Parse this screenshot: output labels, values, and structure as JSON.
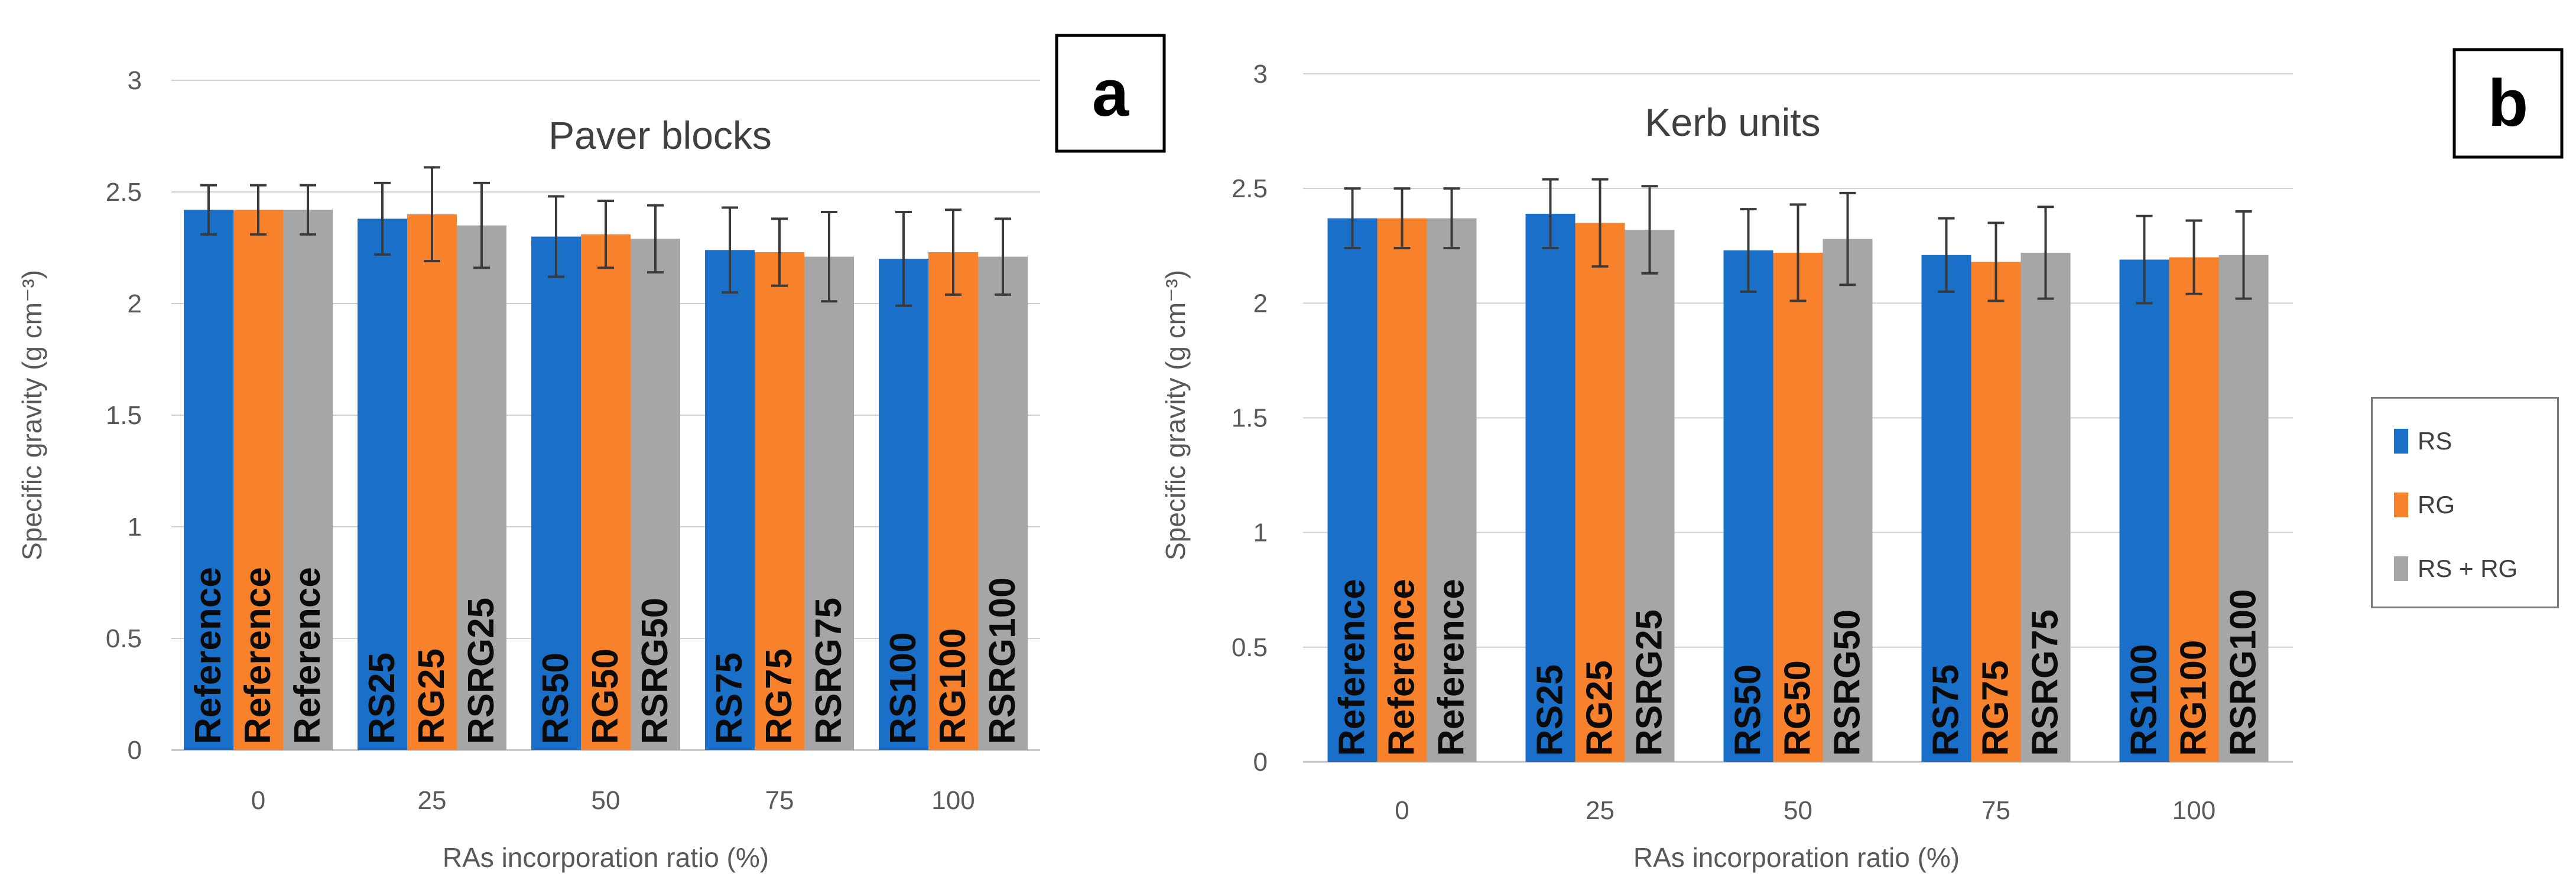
{
  "colors": {
    "series": [
      "#1a70c8",
      "#f7822b",
      "#a6a6a6"
    ],
    "grid": "#d0d0d0",
    "axis_text": "#595959",
    "bar_label": "#0b0b0b"
  },
  "legend": {
    "items": [
      "RS",
      "RG",
      "RS + RG"
    ]
  },
  "chart_data": [
    {
      "type": "bar",
      "title": "Paver blocks",
      "panel_label": "a",
      "xlabel": "RAs incorporation ratio (%)",
      "ylabel": "Specific gravity (g cm⁻³)",
      "categories": [
        "0",
        "25",
        "50",
        "75",
        "100"
      ],
      "ylim": [
        0,
        3
      ],
      "yticks": [
        "0",
        "0.5",
        "1",
        "1.5",
        "2",
        "2.5",
        "3"
      ],
      "grid": true,
      "legend_position": "right",
      "series": [
        {
          "name": "RS",
          "values": [
            2.42,
            2.38,
            2.3,
            2.24,
            2.2
          ],
          "errors": [
            0.11,
            0.16,
            0.18,
            0.19,
            0.21
          ],
          "bar_labels": [
            "Reference",
            "RS25",
            "RS50",
            "RS75",
            "RS100"
          ]
        },
        {
          "name": "RG",
          "values": [
            2.42,
            2.4,
            2.31,
            2.23,
            2.23
          ],
          "errors": [
            0.11,
            0.21,
            0.15,
            0.15,
            0.19
          ],
          "bar_labels": [
            "Reference",
            "RG25",
            "RG50",
            "RG75",
            "RG100"
          ]
        },
        {
          "name": "RS + RG",
          "values": [
            2.42,
            2.35,
            2.29,
            2.21,
            2.21
          ],
          "errors": [
            0.11,
            0.19,
            0.15,
            0.2,
            0.17
          ],
          "bar_labels": [
            "Reference",
            "RSRG25",
            "RSRG50",
            "RSRG75",
            "RSRG100"
          ]
        }
      ]
    },
    {
      "type": "bar",
      "title": "Kerb units",
      "panel_label": "b",
      "xlabel": "RAs incorporation ratio (%)",
      "ylabel": "Specific gravity (g cm⁻³)",
      "categories": [
        "0",
        "25",
        "50",
        "75",
        "100"
      ],
      "ylim": [
        0,
        3
      ],
      "yticks": [
        "0",
        "0.5",
        "1",
        "1.5",
        "2",
        "2.5",
        "3"
      ],
      "grid": true,
      "legend_position": "right",
      "series": [
        {
          "name": "RS",
          "values": [
            2.37,
            2.39,
            2.23,
            2.21,
            2.19
          ],
          "errors": [
            0.13,
            0.15,
            0.18,
            0.16,
            0.19
          ],
          "bar_labels": [
            "Reference",
            "RS25",
            "RS50",
            "RS75",
            "RS100"
          ]
        },
        {
          "name": "RG",
          "values": [
            2.37,
            2.35,
            2.22,
            2.18,
            2.2
          ],
          "errors": [
            0.13,
            0.19,
            0.21,
            0.17,
            0.16
          ],
          "bar_labels": [
            "Reference",
            "RG25",
            "RG50",
            "RG75",
            "RG100"
          ]
        },
        {
          "name": "RS + RG",
          "values": [
            2.37,
            2.32,
            2.28,
            2.22,
            2.21
          ],
          "errors": [
            0.13,
            0.19,
            0.2,
            0.2,
            0.19
          ],
          "bar_labels": [
            "Reference",
            "RSRG25",
            "RSRG50",
            "RSRG75",
            "RSRG100"
          ]
        }
      ]
    }
  ]
}
